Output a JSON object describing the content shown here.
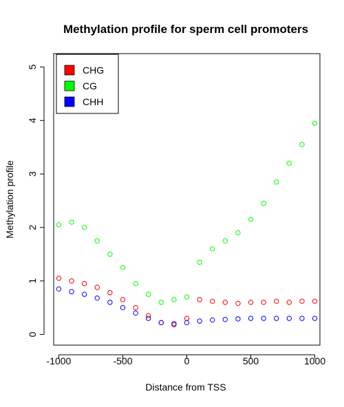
{
  "chart_data": {
    "type": "scatter",
    "title": "Methylation profile for sperm cell promoters",
    "xlabel": "Distance from TSS",
    "ylabel": "Methylation profile",
    "xlim": [
      -1040,
      1040
    ],
    "ylim": [
      -0.2,
      5.25
    ],
    "x_ticks": [
      -1000,
      -500,
      0,
      500,
      1000
    ],
    "x_tick_labels": [
      "-1000",
      "-500",
      "0",
      "500",
      "1000"
    ],
    "y_ticks": [
      0,
      1,
      2,
      3,
      4,
      5
    ],
    "y_tick_labels": [
      "0",
      "1",
      "2",
      "3",
      "4",
      "5"
    ],
    "grid": false,
    "legend_position": "top-left",
    "marker": "open-circle",
    "series": [
      {
        "name": "CHG",
        "color": "#ff0000",
        "x": [
          -1000,
          -900,
          -800,
          -700,
          -600,
          -500,
          -400,
          -300,
          -200,
          -100,
          0,
          100,
          200,
          300,
          400,
          500,
          600,
          700,
          800,
          900,
          1000
        ],
        "y": [
          1.05,
          1.0,
          0.95,
          0.88,
          0.78,
          0.65,
          0.5,
          0.35,
          0.22,
          0.18,
          0.3,
          0.65,
          0.62,
          0.6,
          0.58,
          0.6,
          0.6,
          0.62,
          0.6,
          0.62,
          0.62
        ]
      },
      {
        "name": "CG",
        "color": "#00ff00",
        "x": [
          -1000,
          -900,
          -800,
          -700,
          -600,
          -500,
          -400,
          -300,
          -200,
          -100,
          0,
          100,
          200,
          300,
          400,
          500,
          600,
          700,
          800,
          900,
          1000
        ],
        "y": [
          2.05,
          2.1,
          2.0,
          1.75,
          1.5,
          1.25,
          0.95,
          0.75,
          0.6,
          0.65,
          0.7,
          1.35,
          1.6,
          1.75,
          1.9,
          2.15,
          2.45,
          2.85,
          3.2,
          3.55,
          3.95
        ]
      },
      {
        "name": "CHH",
        "color": "#0000ff",
        "x": [
          -1000,
          -900,
          -800,
          -700,
          -600,
          -500,
          -400,
          -300,
          -200,
          -100,
          0,
          100,
          200,
          300,
          400,
          500,
          600,
          700,
          800,
          900,
          1000
        ],
        "y": [
          0.85,
          0.8,
          0.75,
          0.68,
          0.6,
          0.5,
          0.4,
          0.3,
          0.22,
          0.2,
          0.22,
          0.25,
          0.27,
          0.28,
          0.29,
          0.3,
          0.3,
          0.3,
          0.3,
          0.3,
          0.3
        ]
      }
    ]
  }
}
